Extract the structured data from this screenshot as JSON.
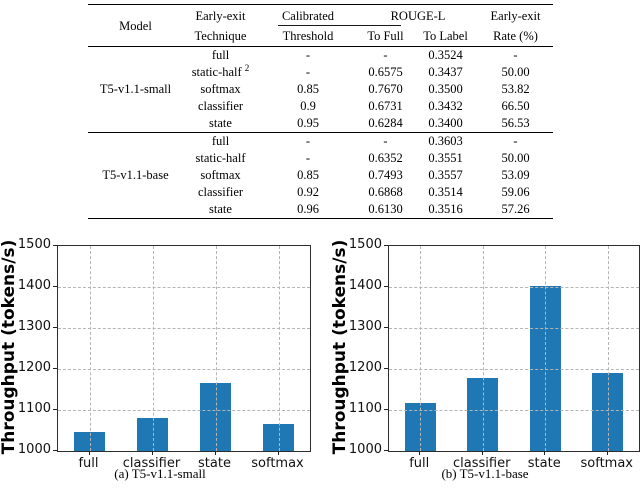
{
  "table": {
    "header": {
      "model": "Model",
      "technique_line1": "Early-exit",
      "technique_line2": "Technique",
      "threshold_line1": "Calibrated",
      "threshold_line2": "Threshold",
      "rouge": "ROUGE-L",
      "to_full": "To Full",
      "to_label": "To Label",
      "rate_line1": "Early-exit",
      "rate_line2": "Rate (%)"
    },
    "groups": [
      {
        "model": "T5-v1.1-small",
        "rows": [
          {
            "technique": "full",
            "threshold": "-",
            "to_full": "-",
            "to_label": "0.3524",
            "rate": "-"
          },
          {
            "technique": "static-half",
            "sup": "2",
            "threshold": "-",
            "to_full": "0.6575",
            "to_label": "0.3437",
            "rate": "50.00"
          },
          {
            "technique": "softmax",
            "threshold": "0.85",
            "to_full": "0.7670",
            "to_label": "0.3500",
            "rate": "53.82"
          },
          {
            "technique": "classifier",
            "threshold": "0.9",
            "to_full": "0.6731",
            "to_label": "0.3432",
            "rate": "66.50"
          },
          {
            "technique": "state",
            "threshold": "0.95",
            "to_full": "0.6284",
            "to_label": "0.3400",
            "rate": "56.53"
          }
        ]
      },
      {
        "model": "T5-v1.1-base",
        "rows": [
          {
            "technique": "full",
            "threshold": "-",
            "to_full": "-",
            "to_label": "0.3603",
            "rate": "-"
          },
          {
            "technique": "static-half",
            "threshold": "-",
            "to_full": "0.6352",
            "to_label": "0.3551",
            "rate": "50.00"
          },
          {
            "technique": "softmax",
            "threshold": "0.85",
            "to_full": "0.7493",
            "to_label": "0.3557",
            "rate": "53.09"
          },
          {
            "technique": "classifier",
            "threshold": "0.92",
            "to_full": "0.6868",
            "to_label": "0.3514",
            "rate": "59.06"
          },
          {
            "technique": "state",
            "threshold": "0.96",
            "to_full": "0.6130",
            "to_label": "0.3516",
            "rate": "57.26"
          }
        ]
      }
    ]
  },
  "chart_data": [
    {
      "type": "bar",
      "categories": [
        "full",
        "classifier",
        "state",
        "softmax"
      ],
      "values": [
        1047,
        1081,
        1166,
        1065
      ],
      "title": "",
      "xlabel": "",
      "ylabel": "Throughput (tokens/s)",
      "ylim": [
        1000,
        1500
      ],
      "yticks": [
        1000,
        1100,
        1200,
        1300,
        1400,
        1500
      ],
      "grid": true,
      "legend": false,
      "bar_color": "#1f77b4",
      "caption": "(a) T5-v1.1-small"
    },
    {
      "type": "bar",
      "categories": [
        "full",
        "classifier",
        "state",
        "softmax"
      ],
      "values": [
        1118,
        1178,
        1402,
        1191
      ],
      "title": "",
      "xlabel": "",
      "ylabel": "Throughput (tokens/s)",
      "ylim": [
        1000,
        1500
      ],
      "yticks": [
        1000,
        1100,
        1200,
        1300,
        1400,
        1500
      ],
      "grid": true,
      "legend": false,
      "bar_color": "#1f77b4",
      "caption": "(b) T5-v1.1-base"
    }
  ]
}
